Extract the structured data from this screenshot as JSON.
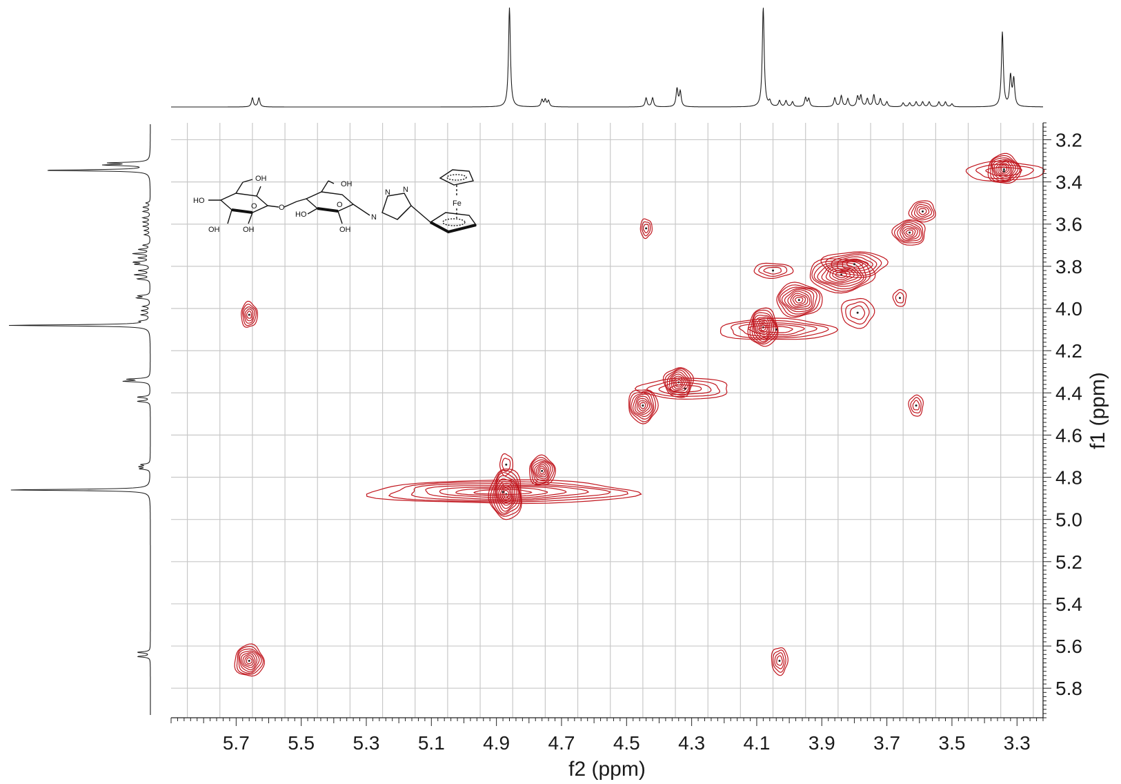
{
  "chart_data": {
    "type": "contour",
    "xlabel": "f2 (ppm)",
    "ylabel": "f1 (ppm)",
    "xlim": [
      5.9,
      3.22
    ],
    "ylim": [
      3.12,
      5.94
    ],
    "x_ticks": [
      5.7,
      5.5,
      5.3,
      5.1,
      4.9,
      4.7,
      4.5,
      4.3,
      4.1,
      3.9,
      3.7,
      3.5,
      3.3
    ],
    "x_tick_labels": [
      "5.7",
      "5.5",
      "5.3",
      "5.1",
      "4.9",
      "4.7",
      "4.5",
      "4.3",
      "4.1",
      "3.9",
      "3.7",
      "3.5",
      "3.3"
    ],
    "y_ticks": [
      3.2,
      3.4,
      3.6,
      3.8,
      4.0,
      4.2,
      4.4,
      4.6,
      4.8,
      5.0,
      5.2,
      5.4,
      5.6,
      5.8
    ],
    "y_tick_labels": [
      "3.2",
      "3.4",
      "3.6",
      "3.8",
      "4.0",
      "4.2",
      "4.4",
      "4.6",
      "4.8",
      "5.0",
      "5.2",
      "5.4",
      "5.6",
      "5.8"
    ],
    "grid": true,
    "contour_color": "#c0141c",
    "projection_color": "#1a1a1a",
    "projection_peaks": [
      {
        "ppm": 5.65,
        "height": 0.09
      },
      {
        "ppm": 5.63,
        "height": 0.09
      },
      {
        "ppm": 4.86,
        "height": 1.0
      },
      {
        "ppm": 4.76,
        "height": 0.07
      },
      {
        "ppm": 4.75,
        "height": 0.07
      },
      {
        "ppm": 4.74,
        "height": 0.06
      },
      {
        "ppm": 4.44,
        "height": 0.09
      },
      {
        "ppm": 4.42,
        "height": 0.09
      },
      {
        "ppm": 4.345,
        "height": 0.18
      },
      {
        "ppm": 4.335,
        "height": 0.15
      },
      {
        "ppm": 4.08,
        "height": 1.0
      },
      {
        "ppm": 4.06,
        "height": 0.05
      },
      {
        "ppm": 4.03,
        "height": 0.06
      },
      {
        "ppm": 4.01,
        "height": 0.06
      },
      {
        "ppm": 3.99,
        "height": 0.05
      },
      {
        "ppm": 3.95,
        "height": 0.09
      },
      {
        "ppm": 3.94,
        "height": 0.08
      },
      {
        "ppm": 3.86,
        "height": 0.09
      },
      {
        "ppm": 3.84,
        "height": 0.11
      },
      {
        "ppm": 3.82,
        "height": 0.08
      },
      {
        "ppm": 3.79,
        "height": 0.1
      },
      {
        "ppm": 3.78,
        "height": 0.11
      },
      {
        "ppm": 3.76,
        "height": 0.08
      },
      {
        "ppm": 3.74,
        "height": 0.12
      },
      {
        "ppm": 3.72,
        "height": 0.08
      },
      {
        "ppm": 3.7,
        "height": 0.05
      },
      {
        "ppm": 3.65,
        "height": 0.04
      },
      {
        "ppm": 3.63,
        "height": 0.04
      },
      {
        "ppm": 3.61,
        "height": 0.05
      },
      {
        "ppm": 3.59,
        "height": 0.05
      },
      {
        "ppm": 3.57,
        "height": 0.05
      },
      {
        "ppm": 3.54,
        "height": 0.05
      },
      {
        "ppm": 3.52,
        "height": 0.05
      },
      {
        "ppm": 3.5,
        "height": 0.03
      },
      {
        "ppm": 3.345,
        "height": 0.75
      },
      {
        "ppm": 3.32,
        "height": 0.3
      },
      {
        "ppm": 3.31,
        "height": 0.27
      }
    ],
    "cross_peaks": [
      {
        "x": 5.66,
        "y": 5.67,
        "rx": 0.045,
        "ry": 0.075,
        "levels": 8
      },
      {
        "x": 5.66,
        "y": 4.03,
        "rx": 0.025,
        "ry": 0.06,
        "levels": 5
      },
      {
        "x": 4.44,
        "y": 3.62,
        "rx": 0.018,
        "ry": 0.045,
        "levels": 3
      },
      {
        "x": 4.03,
        "y": 5.67,
        "rx": 0.025,
        "ry": 0.065,
        "levels": 4
      },
      {
        "x": 3.61,
        "y": 4.46,
        "rx": 0.022,
        "ry": 0.05,
        "levels": 3
      },
      {
        "x": 4.87,
        "y": 4.88,
        "rx": 0.05,
        "ry": 0.12,
        "levels": 10
      },
      {
        "x": 4.88,
        "y": 4.87,
        "rx": 0.41,
        "ry": 0.055,
        "levels": 7
      },
      {
        "x": 4.76,
        "y": 4.77,
        "rx": 0.04,
        "ry": 0.07,
        "levels": 8
      },
      {
        "x": 4.87,
        "y": 4.74,
        "rx": 0.02,
        "ry": 0.05,
        "levels": 2
      },
      {
        "x": 4.45,
        "y": 4.46,
        "rx": 0.045,
        "ry": 0.08,
        "levels": 8
      },
      {
        "x": 4.34,
        "y": 4.35,
        "rx": 0.045,
        "ry": 0.07,
        "levels": 8
      },
      {
        "x": 4.32,
        "y": 4.38,
        "rx": 0.14,
        "ry": 0.05,
        "levels": 4
      },
      {
        "x": 4.08,
        "y": 4.09,
        "rx": 0.045,
        "ry": 0.09,
        "levels": 9
      },
      {
        "x": 4.04,
        "y": 4.1,
        "rx": 0.18,
        "ry": 0.05,
        "levels": 5
      },
      {
        "x": 3.97,
        "y": 3.96,
        "rx": 0.07,
        "ry": 0.08,
        "levels": 9
      },
      {
        "x": 3.84,
        "y": 3.84,
        "rx": 0.1,
        "ry": 0.08,
        "levels": 9
      },
      {
        "x": 3.8,
        "y": 3.79,
        "rx": 0.1,
        "ry": 0.06,
        "levels": 6
      },
      {
        "x": 3.63,
        "y": 3.64,
        "rx": 0.05,
        "ry": 0.06,
        "levels": 7
      },
      {
        "x": 3.59,
        "y": 3.54,
        "rx": 0.04,
        "ry": 0.05,
        "levels": 5
      },
      {
        "x": 3.34,
        "y": 3.34,
        "rx": 0.05,
        "ry": 0.07,
        "levels": 9
      },
      {
        "x": 3.34,
        "y": 3.35,
        "rx": 0.12,
        "ry": 0.045,
        "levels": 3
      },
      {
        "x": 4.05,
        "y": 3.82,
        "rx": 0.06,
        "ry": 0.035,
        "levels": 3
      },
      {
        "x": 3.79,
        "y": 4.02,
        "rx": 0.05,
        "ry": 0.07,
        "levels": 3
      },
      {
        "x": 3.66,
        "y": 3.95,
        "rx": 0.02,
        "ry": 0.04,
        "levels": 2
      }
    ]
  },
  "molecule": {
    "atom_labels": [
      {
        "id": "oh-top-1",
        "text": "OH"
      },
      {
        "id": "oh-top-2",
        "text": "OH"
      },
      {
        "id": "ho-left",
        "text": "HO"
      },
      {
        "id": "o-link",
        "text": "O"
      },
      {
        "id": "o-ring-1",
        "text": "O"
      },
      {
        "id": "o-ring-2",
        "text": "O"
      },
      {
        "id": "ho-mid",
        "text": "HO"
      },
      {
        "id": "oh-bot-1",
        "text": "OH"
      },
      {
        "id": "oh-bot-2",
        "text": "OH"
      },
      {
        "id": "oh-bot-3",
        "text": "OH"
      },
      {
        "id": "n1",
        "text": "N"
      },
      {
        "id": "n2",
        "text": "N"
      },
      {
        "id": "n3",
        "text": "N"
      },
      {
        "id": "fe",
        "text": "Fe"
      }
    ]
  }
}
